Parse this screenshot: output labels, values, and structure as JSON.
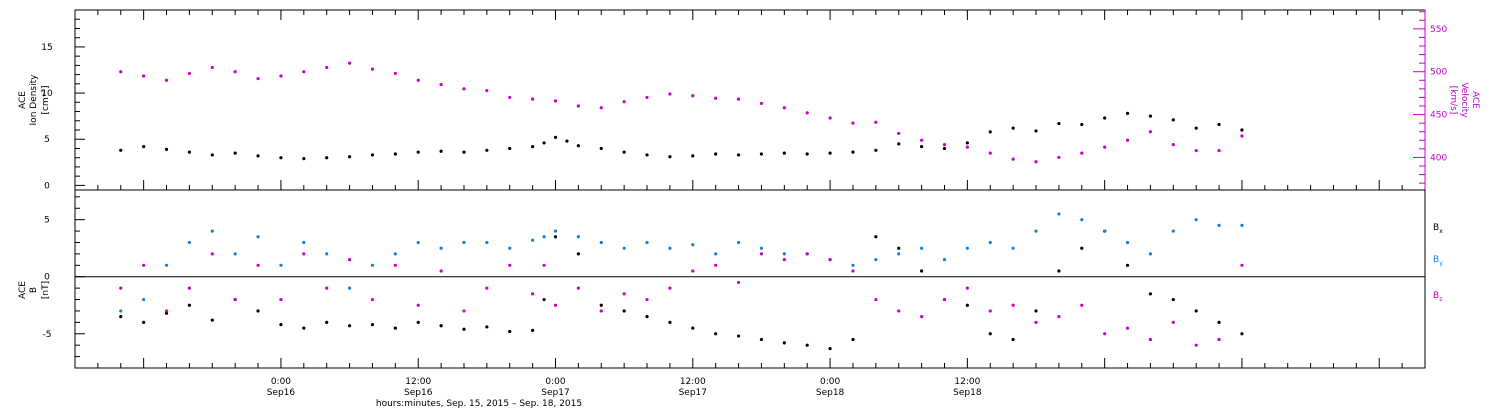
{
  "chart_data": [
    {
      "type": "scatter",
      "title": "",
      "y_label_left_lines": [
        "ACE",
        "Ion Density"
      ],
      "y_unit_left": "[cm⁻³]",
      "y_label_right_lines": [
        "ACE",
        "Velocity"
      ],
      "y_unit_right": "[km/s]",
      "ylim_left": [
        -0.5,
        19.0
      ],
      "ylim_right": [
        362,
        572
      ],
      "yticks_left": [
        0,
        5,
        10,
        15
      ],
      "yticks_right": [
        400,
        450,
        500,
        550
      ],
      "series": [
        {
          "name": "",
          "axis": "left",
          "color": "#000000",
          "points": [
            [
              -14,
              3.8
            ],
            [
              -12,
              4.2
            ],
            [
              -10,
              3.9
            ],
            [
              -8,
              3.6
            ],
            [
              -6,
              3.3
            ],
            [
              -4,
              3.5
            ],
            [
              -2,
              3.2
            ],
            [
              0,
              3.0
            ],
            [
              2,
              2.9
            ],
            [
              4,
              3.0
            ],
            [
              6,
              3.1
            ],
            [
              8,
              3.3
            ],
            [
              10,
              3.4
            ],
            [
              12,
              3.6
            ],
            [
              14,
              3.7
            ],
            [
              16,
              3.6
            ],
            [
              18,
              3.8
            ],
            [
              20,
              4.0
            ],
            [
              22,
              4.2
            ],
            [
              23,
              4.6
            ],
            [
              24,
              5.2
            ],
            [
              25,
              4.8
            ],
            [
              26,
              4.3
            ],
            [
              28,
              4.0
            ],
            [
              30,
              3.6
            ],
            [
              32,
              3.3
            ],
            [
              34,
              3.1
            ],
            [
              36,
              3.2
            ],
            [
              38,
              3.4
            ],
            [
              40,
              3.3
            ],
            [
              42,
              3.4
            ],
            [
              44,
              3.5
            ],
            [
              46,
              3.4
            ],
            [
              48,
              3.5
            ],
            [
              50,
              3.6
            ],
            [
              52,
              3.8
            ],
            [
              54,
              4.5
            ],
            [
              56,
              4.2
            ],
            [
              58,
              4.0
            ],
            [
              60,
              4.6
            ],
            [
              62,
              5.8
            ],
            [
              64,
              6.2
            ],
            [
              66,
              5.9
            ],
            [
              68,
              6.7
            ],
            [
              70,
              6.6
            ],
            [
              72,
              7.3
            ],
            [
              74,
              7.8
            ],
            [
              76,
              7.5
            ],
            [
              78,
              7.1
            ],
            [
              80,
              6.2
            ],
            [
              82,
              6.6
            ],
            [
              84,
              6.0
            ]
          ]
        },
        {
          "name": "",
          "axis": "right",
          "color": "#cc00cc",
          "points": [
            [
              -14,
              500
            ],
            [
              -12,
              495
            ],
            [
              -10,
              490
            ],
            [
              -8,
              498
            ],
            [
              -6,
              505
            ],
            [
              -4,
              500
            ],
            [
              -2,
              492
            ],
            [
              0,
              495
            ],
            [
              2,
              500
            ],
            [
              4,
              505
            ],
            [
              6,
              510
            ],
            [
              8,
              503
            ],
            [
              10,
              498
            ],
            [
              12,
              490
            ],
            [
              14,
              485
            ],
            [
              16,
              480
            ],
            [
              18,
              478
            ],
            [
              20,
              470
            ],
            [
              22,
              468
            ],
            [
              24,
              466
            ],
            [
              26,
              460
            ],
            [
              28,
              458
            ],
            [
              30,
              465
            ],
            [
              32,
              470
            ],
            [
              34,
              474
            ],
            [
              36,
              472
            ],
            [
              38,
              469
            ],
            [
              40,
              468
            ],
            [
              42,
              463
            ],
            [
              44,
              458
            ],
            [
              46,
              452
            ],
            [
              48,
              446
            ],
            [
              50,
              440
            ],
            [
              52,
              441
            ],
            [
              54,
              428
            ],
            [
              56,
              420
            ],
            [
              58,
              415
            ],
            [
              60,
              412
            ],
            [
              62,
              405
            ],
            [
              64,
              398
            ],
            [
              66,
              395
            ],
            [
              68,
              400
            ],
            [
              70,
              405
            ],
            [
              72,
              412
            ],
            [
              74,
              420
            ],
            [
              76,
              430
            ],
            [
              78,
              415
            ],
            [
              80,
              408
            ],
            [
              82,
              408
            ],
            [
              84,
              425
            ]
          ]
        }
      ]
    },
    {
      "type": "scatter",
      "title": "",
      "y_label_lines": [
        "ACE",
        "B"
      ],
      "y_unit": "[nT]",
      "ylim": [
        -8.0,
        7.6
      ],
      "yticks": [
        -5,
        0,
        5
      ],
      "legend": [
        {
          "label": "B",
          "sub": "x",
          "color": "#000000"
        },
        {
          "label": "B",
          "sub": "y",
          "color": "#1080e0"
        },
        {
          "label": "B",
          "sub": "z",
          "color": "#cc00cc"
        }
      ],
      "series": [
        {
          "name": "Bx",
          "color": "#000000",
          "points": [
            [
              -14,
              -3.5
            ],
            [
              -12,
              -4.0
            ],
            [
              -10,
              -3.2
            ],
            [
              -8,
              -2.5
            ],
            [
              -6,
              -3.8
            ],
            [
              -4,
              -2.0
            ],
            [
              -2,
              -3.0
            ],
            [
              0,
              -4.2
            ],
            [
              2,
              -4.5
            ],
            [
              4,
              -4.0
            ],
            [
              6,
              -4.3
            ],
            [
              8,
              -4.2
            ],
            [
              10,
              -4.5
            ],
            [
              12,
              -4.0
            ],
            [
              14,
              -4.3
            ],
            [
              16,
              -4.6
            ],
            [
              18,
              -4.4
            ],
            [
              20,
              -4.8
            ],
            [
              22,
              -4.7
            ],
            [
              23,
              -2.0
            ],
            [
              24,
              3.5
            ],
            [
              26,
              2.0
            ],
            [
              28,
              -2.5
            ],
            [
              30,
              -3.0
            ],
            [
              32,
              -3.5
            ],
            [
              34,
              -4.0
            ],
            [
              36,
              -4.5
            ],
            [
              38,
              -5.0
            ],
            [
              40,
              -5.2
            ],
            [
              42,
              -5.5
            ],
            [
              44,
              -5.8
            ],
            [
              46,
              -6.0
            ],
            [
              48,
              -6.3
            ],
            [
              50,
              -5.5
            ],
            [
              52,
              3.5
            ],
            [
              54,
              2.5
            ],
            [
              56,
              0.5
            ],
            [
              58,
              -2.0
            ],
            [
              60,
              -2.5
            ],
            [
              62,
              -5.0
            ],
            [
              64,
              -5.5
            ],
            [
              66,
              -3.0
            ],
            [
              68,
              0.5
            ],
            [
              70,
              2.5
            ],
            [
              72,
              4.0
            ],
            [
              74,
              1.0
            ],
            [
              76,
              -1.5
            ],
            [
              78,
              -2.0
            ],
            [
              80,
              -3.0
            ],
            [
              82,
              -4.0
            ],
            [
              84,
              -5.0
            ]
          ]
        },
        {
          "name": "By",
          "color": "#1080e0",
          "points": [
            [
              -14,
              -3.0
            ],
            [
              -12,
              -2.0
            ],
            [
              -10,
              1.0
            ],
            [
              -8,
              3.0
            ],
            [
              -6,
              4.0
            ],
            [
              -4,
              2.0
            ],
            [
              -2,
              3.5
            ],
            [
              0,
              1.0
            ],
            [
              2,
              3.0
            ],
            [
              4,
              2.0
            ],
            [
              6,
              -1.0
            ],
            [
              8,
              1.0
            ],
            [
              10,
              2.0
            ],
            [
              12,
              3.0
            ],
            [
              14,
              2.5
            ],
            [
              16,
              3.0
            ],
            [
              18,
              3.0
            ],
            [
              20,
              2.5
            ],
            [
              22,
              3.2
            ],
            [
              23,
              3.5
            ],
            [
              24,
              4.0
            ],
            [
              26,
              3.5
            ],
            [
              28,
              3.0
            ],
            [
              30,
              2.5
            ],
            [
              32,
              3.0
            ],
            [
              34,
              2.5
            ],
            [
              36,
              2.8
            ],
            [
              38,
              2.0
            ],
            [
              40,
              3.0
            ],
            [
              42,
              2.5
            ],
            [
              44,
              2.0
            ],
            [
              46,
              2.0
            ],
            [
              48,
              1.5
            ],
            [
              50,
              1.0
            ],
            [
              52,
              1.5
            ],
            [
              54,
              2.0
            ],
            [
              56,
              2.5
            ],
            [
              58,
              1.5
            ],
            [
              60,
              2.5
            ],
            [
              62,
              3.0
            ],
            [
              64,
              2.5
            ],
            [
              66,
              4.0
            ],
            [
              68,
              5.5
            ],
            [
              70,
              5.0
            ],
            [
              72,
              4.0
            ],
            [
              74,
              3.0
            ],
            [
              76,
              2.0
            ],
            [
              78,
              4.0
            ],
            [
              80,
              5.0
            ],
            [
              82,
              4.5
            ],
            [
              84,
              4.5
            ]
          ]
        },
        {
          "name": "Bz",
          "color": "#cc00cc",
          "points": [
            [
              -14,
              -1.0
            ],
            [
              -12,
              1.0
            ],
            [
              -10,
              -3.0
            ],
            [
              -8,
              -1.0
            ],
            [
              -6,
              2.0
            ],
            [
              -4,
              -2.0
            ],
            [
              -2,
              1.0
            ],
            [
              0,
              -2.0
            ],
            [
              2,
              2.0
            ],
            [
              4,
              -1.0
            ],
            [
              6,
              1.5
            ],
            [
              8,
              -2.0
            ],
            [
              10,
              1.0
            ],
            [
              12,
              -2.5
            ],
            [
              14,
              0.5
            ],
            [
              16,
              -3.0
            ],
            [
              18,
              -1.0
            ],
            [
              20,
              1.0
            ],
            [
              22,
              -1.5
            ],
            [
              23,
              1.0
            ],
            [
              24,
              -2.5
            ],
            [
              26,
              -1.0
            ],
            [
              28,
              -3.0
            ],
            [
              30,
              -1.5
            ],
            [
              32,
              -2.0
            ],
            [
              34,
              -1.0
            ],
            [
              36,
              0.5
            ],
            [
              38,
              1.0
            ],
            [
              40,
              -0.5
            ],
            [
              42,
              2.0
            ],
            [
              44,
              1.5
            ],
            [
              46,
              2.0
            ],
            [
              48,
              1.5
            ],
            [
              50,
              0.5
            ],
            [
              52,
              -2.0
            ],
            [
              54,
              -3.0
            ],
            [
              56,
              -3.5
            ],
            [
              58,
              -2.0
            ],
            [
              60,
              -1.0
            ],
            [
              62,
              -3.0
            ],
            [
              64,
              -2.5
            ],
            [
              66,
              -4.0
            ],
            [
              68,
              -3.5
            ],
            [
              70,
              -2.5
            ],
            [
              72,
              -5.0
            ],
            [
              74,
              -4.5
            ],
            [
              76,
              -5.5
            ],
            [
              78,
              -4.0
            ],
            [
              80,
              -6.0
            ],
            [
              82,
              -5.5
            ],
            [
              84,
              1.0
            ]
          ]
        }
      ]
    }
  ],
  "x_axis": {
    "unit": "hours since 2015-09-16 00:00 UT",
    "range": [
      -18,
      100
    ],
    "ticks": [
      {
        "x": 0,
        "time": "0:00",
        "date": "Sep16"
      },
      {
        "x": 12,
        "time": "12:00",
        "date": "Sep16"
      },
      {
        "x": 24,
        "time": "0:00",
        "date": "Sep17"
      },
      {
        "x": 36,
        "time": "12:00",
        "date": "Sep17"
      },
      {
        "x": 48,
        "time": "0:00",
        "date": "Sep18"
      },
      {
        "x": 60,
        "time": "12:00",
        "date": "Sep18"
      }
    ],
    "minor_step": 2,
    "title": "hours:minutes, Sep. 15, 2015 – Sep. 18, 2015"
  }
}
